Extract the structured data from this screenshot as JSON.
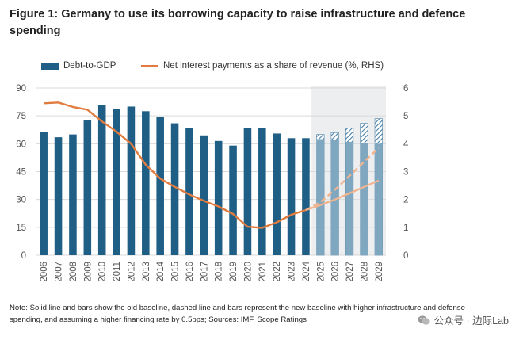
{
  "title": "Figure 1: Germany to use its borrowing capacity to raise infrastructure and defence spending",
  "legend": {
    "bar_label": "Debt-to-GDP",
    "line_label": "Net interest payments as a share of revenue (%, RHS)"
  },
  "colors": {
    "bar": "#1f5f86",
    "bar_projected": "#7fa8c0",
    "hatch": "#4a80a6",
    "line": "#e27c3e",
    "line_new": "#f1b48f",
    "projection_bg": "#eceef0",
    "grid": "#d9d9d9"
  },
  "chart_data": {
    "type": "bar+line",
    "categories": [
      "2006",
      "2007",
      "2008",
      "2009",
      "2010",
      "2011",
      "2012",
      "2013",
      "2014",
      "2015",
      "2016",
      "2017",
      "2018",
      "2019",
      "2020",
      "2021",
      "2022",
      "2023",
      "2024",
      "2025",
      "2026",
      "2027",
      "2028",
      "2029"
    ],
    "series": [
      {
        "name": "Debt-to-GDP",
        "axis": "left",
        "values": [
          66.5,
          63.5,
          65,
          72.5,
          81,
          78.5,
          80,
          77.5,
          74.5,
          71,
          68.5,
          64.5,
          61.5,
          59,
          68.5,
          68.5,
          65.5,
          63,
          63,
          62.5,
          62,
          61,
          60.5,
          60
        ]
      },
      {
        "name": "Debt-to-GDP (new baseline, projected)",
        "axis": "left",
        "values": [
          null,
          null,
          null,
          null,
          null,
          null,
          null,
          null,
          null,
          null,
          null,
          null,
          null,
          null,
          null,
          null,
          null,
          null,
          null,
          65,
          66,
          68.5,
          71,
          73.5
        ]
      },
      {
        "name": "Net interest payments as a share of revenue (%, RHS)",
        "axis": "right",
        "values": [
          5.45,
          5.48,
          5.32,
          5.22,
          4.8,
          4.43,
          4.0,
          3.25,
          2.75,
          2.45,
          2.18,
          1.95,
          1.75,
          1.48,
          1.02,
          0.98,
          1.18,
          1.45,
          1.62,
          1.8,
          2.0,
          2.22,
          2.45,
          2.68
        ]
      },
      {
        "name": "Net interest payments (new baseline, projected)",
        "axis": "right",
        "values": [
          null,
          null,
          null,
          null,
          null,
          null,
          null,
          null,
          null,
          null,
          null,
          null,
          null,
          null,
          null,
          null,
          null,
          null,
          1.62,
          1.9,
          2.35,
          2.85,
          3.35,
          3.85
        ]
      }
    ],
    "projection_start": "2025",
    "ylim_left": [
      0,
      90
    ],
    "yticks_left": [
      0,
      15,
      30,
      45,
      60,
      75,
      90
    ],
    "ylim_right": [
      0,
      6
    ],
    "yticks_right": [
      0,
      1,
      2,
      3,
      4,
      5,
      6
    ],
    "grid": true,
    "legend_position": "top-left"
  },
  "note": "Note: Solid line and bars show the old baseline, dashed line and bars represent the new baseline with higher infrastructure and defense spending, and assuming a higher financing rate by 0.5pps; Sources: IMF, Scope Ratings",
  "watermark": "公众号 · 边际Lab"
}
